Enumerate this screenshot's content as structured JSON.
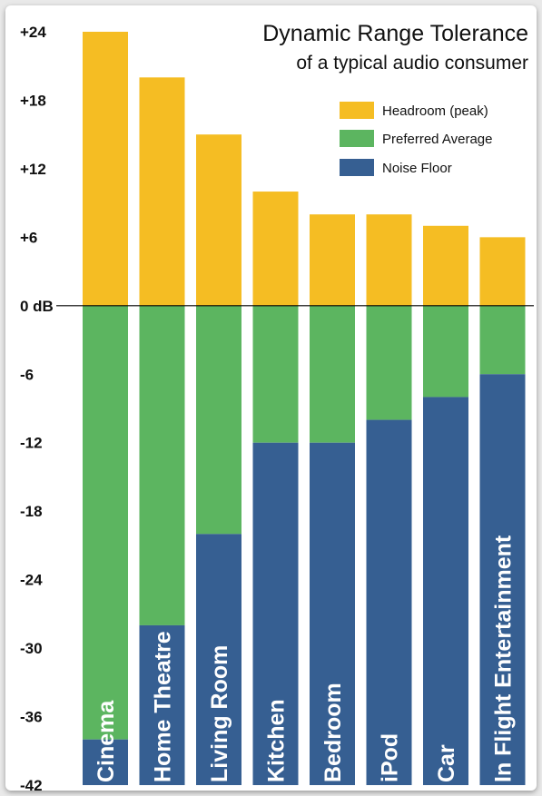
{
  "chart_data": {
    "type": "bar",
    "stacked": true,
    "title": "Dynamic Range Tolerance",
    "subtitle": "of a typical audio consumer",
    "categories": [
      "Cinema",
      "Home Theatre",
      "Living Room",
      "Kitchen",
      "Bedroom",
      "iPod",
      "Car",
      "In Flight Entertainment"
    ],
    "series": [
      {
        "name": "Headroom (peak)",
        "color": "#f5bd23",
        "from": [
          0,
          0,
          0,
          0,
          0,
          0,
          0,
          0
        ],
        "to": [
          24,
          20,
          15,
          10,
          8,
          8,
          7,
          6
        ]
      },
      {
        "name": "Preferred Average",
        "color": "#5cb560",
        "from": [
          -38,
          -28,
          -20,
          -12,
          -12,
          -10,
          -8,
          -6
        ],
        "to": [
          0,
          0,
          0,
          0,
          0,
          0,
          0,
          0
        ]
      },
      {
        "name": "Noise Floor",
        "color": "#365f92",
        "from": [
          -42,
          -42,
          -42,
          -42,
          -42,
          -42,
          -42,
          -42
        ],
        "to": [
          -38,
          -28,
          -20,
          -12,
          -12,
          -10,
          -8,
          -6
        ]
      }
    ],
    "y_ticks": [
      {
        "value": 24,
        "label": "+24"
      },
      {
        "value": 18,
        "label": "+18"
      },
      {
        "value": 12,
        "label": "+12"
      },
      {
        "value": 6,
        "label": "+6"
      },
      {
        "value": 0,
        "label": "0 dB"
      },
      {
        "value": -6,
        "label": "-6"
      },
      {
        "value": -12,
        "label": "-12"
      },
      {
        "value": -18,
        "label": "-18"
      },
      {
        "value": -24,
        "label": "-24"
      },
      {
        "value": -30,
        "label": "-30"
      },
      {
        "value": -36,
        "label": "-36"
      },
      {
        "value": -42,
        "label": "-42"
      }
    ],
    "ylim": [
      -42,
      24
    ],
    "grid": false,
    "legend_position": "top-right",
    "xlabel": "",
    "ylabel": ""
  }
}
